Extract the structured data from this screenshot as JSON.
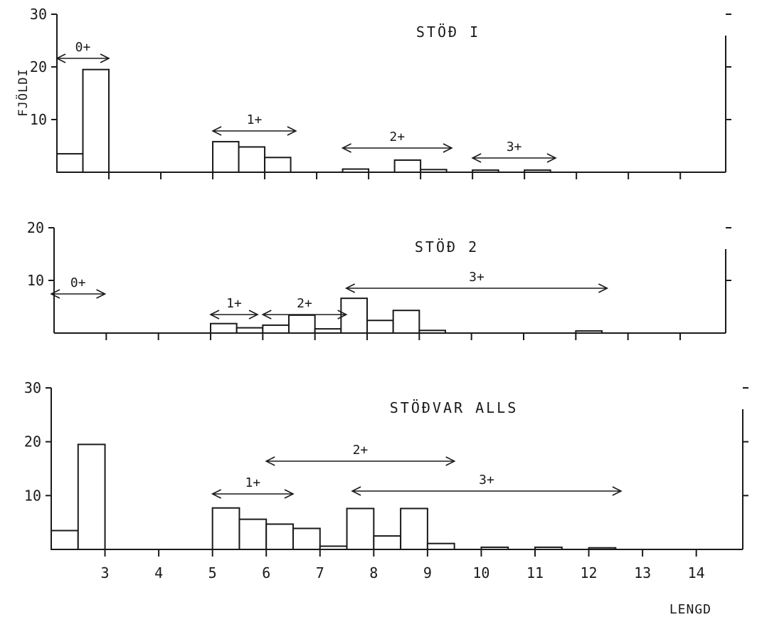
{
  "chart_data": [
    {
      "type": "bar",
      "title": "STÖÐ I",
      "ylabel": "FJÖLDI",
      "ylim": [
        0,
        30
      ],
      "yticks": [
        10,
        20,
        30
      ],
      "xlim": [
        2,
        15
      ],
      "bin_width": 0.5,
      "bars": [
        {
          "x": 2.5,
          "value": 3.5
        },
        {
          "x": 3.0,
          "value": 19.5
        },
        {
          "x": 5.5,
          "value": 5.8
        },
        {
          "x": 6.0,
          "value": 4.8
        },
        {
          "x": 6.5,
          "value": 2.8
        },
        {
          "x": 8.0,
          "value": 0.6
        },
        {
          "x": 9.0,
          "value": 2.3
        },
        {
          "x": 9.5,
          "value": 0.5
        },
        {
          "x": 10.5,
          "value": 0.4
        },
        {
          "x": 11.5,
          "value": 0.4
        }
      ],
      "age_groups": [
        {
          "label": "0+",
          "from": 2.0,
          "to": 3.0
        },
        {
          "label": "1+",
          "from": 5.0,
          "to": 6.6
        },
        {
          "label": "2+",
          "from": 7.5,
          "to": 9.6
        },
        {
          "label": "3+",
          "from": 10.0,
          "to": 11.6
        }
      ]
    },
    {
      "type": "bar",
      "title": "STÖÐ 2",
      "ylim": [
        0,
        20
      ],
      "yticks": [
        10,
        20
      ],
      "xlim": [
        2,
        15
      ],
      "bin_width": 0.5,
      "bars": [
        {
          "x": 5.5,
          "value": 1.8
        },
        {
          "x": 6.0,
          "value": 1.0
        },
        {
          "x": 6.5,
          "value": 1.5
        },
        {
          "x": 7.0,
          "value": 3.4
        },
        {
          "x": 7.5,
          "value": 0.8
        },
        {
          "x": 8.0,
          "value": 6.6
        },
        {
          "x": 8.5,
          "value": 2.4
        },
        {
          "x": 9.0,
          "value": 4.3
        },
        {
          "x": 9.5,
          "value": 0.5
        },
        {
          "x": 12.5,
          "value": 0.4
        }
      ],
      "age_groups": [
        {
          "label": "1+",
          "from": 5.0,
          "to": 5.9
        },
        {
          "label": "2+",
          "from": 6.0,
          "to": 7.6
        },
        {
          "label": "3+",
          "from": 7.6,
          "to": 12.6
        }
      ]
    },
    {
      "type": "bar",
      "title": "STÖÐVAR ALLS",
      "ylim": [
        0,
        30
      ],
      "yticks": [
        10,
        20,
        30
      ],
      "xlim": [
        2,
        15
      ],
      "bin_width": 0.5,
      "xticks": [
        3,
        4,
        5,
        6,
        7,
        8,
        9,
        10,
        11,
        12,
        13,
        14
      ],
      "xlabel": "LENGD",
      "bars": [
        {
          "x": 2.5,
          "value": 3.5
        },
        {
          "x": 3.0,
          "value": 19.5
        },
        {
          "x": 5.5,
          "value": 7.7
        },
        {
          "x": 6.0,
          "value": 5.6
        },
        {
          "x": 6.5,
          "value": 4.7
        },
        {
          "x": 7.0,
          "value": 3.9
        },
        {
          "x": 7.5,
          "value": 0.6
        },
        {
          "x": 8.0,
          "value": 7.6
        },
        {
          "x": 8.5,
          "value": 2.5
        },
        {
          "x": 9.0,
          "value": 7.6
        },
        {
          "x": 9.5,
          "value": 1.1
        },
        {
          "x": 10.5,
          "value": 0.4
        },
        {
          "x": 11.5,
          "value": 0.4
        },
        {
          "x": 12.5,
          "value": 0.3
        }
      ],
      "age_groups": [
        {
          "label": "0+",
          "from": 2.0,
          "to": 3.0
        },
        {
          "label": "1+",
          "from": 5.0,
          "to": 6.5
        },
        {
          "label": "2+",
          "from": 6.0,
          "to": 9.5
        },
        {
          "label": "3+",
          "from": 7.6,
          "to": 12.6
        }
      ]
    }
  ]
}
